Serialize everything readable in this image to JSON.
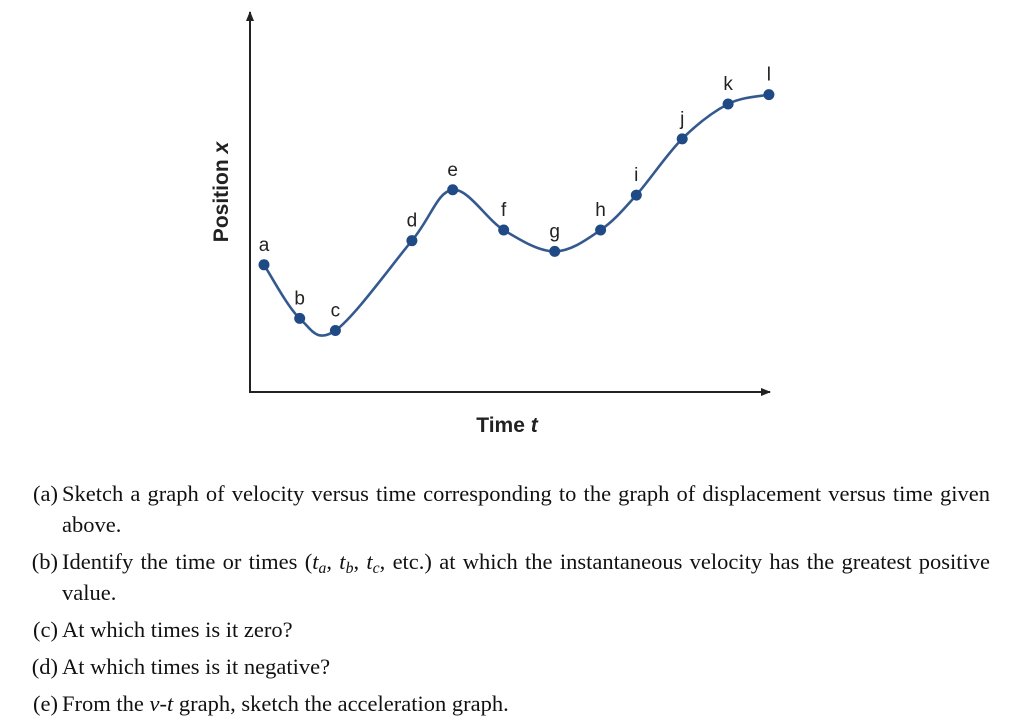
{
  "chart_data": {
    "type": "line",
    "xlabel_main": "Time",
    "xlabel_var": "t",
    "ylabel_main": "Position",
    "ylabel_var": "x",
    "points": [
      {
        "label": "a",
        "t": 0.0,
        "x": 0.4
      },
      {
        "label": "b",
        "t": 0.07,
        "x": 0.2
      },
      {
        "label": "c",
        "t": 0.14,
        "x": 0.155
      },
      {
        "label": "d",
        "t": 0.29,
        "x": 0.49
      },
      {
        "label": "e",
        "t": 0.37,
        "x": 0.68
      },
      {
        "label": "f",
        "t": 0.47,
        "x": 0.53
      },
      {
        "label": "g",
        "t": 0.57,
        "x": 0.45
      },
      {
        "label": "h",
        "t": 0.66,
        "x": 0.53
      },
      {
        "label": "i",
        "t": 0.73,
        "x": 0.66
      },
      {
        "label": "j",
        "t": 0.82,
        "x": 0.87
      },
      {
        "label": "k",
        "t": 0.91,
        "x": 1.0
      },
      {
        "label": "l",
        "t": 0.99,
        "x": 1.035
      }
    ],
    "colors": {
      "curve": "#34598f",
      "points": "#1f4a85",
      "axes": "#222222"
    }
  },
  "questions": [
    {
      "marker": "a",
      "text": "Sketch a graph of velocity versus time corresponding to the graph of displacement versus time given above."
    },
    {
      "marker": "b",
      "parts": [
        "Identify the time or times (",
        "t",
        "a",
        ", ",
        "t",
        "b",
        ", ",
        "t",
        "c",
        ", etc.)  at which the instantaneous velocity has the greatest positive value."
      ]
    },
    {
      "marker": "c",
      "text": "At which times is it zero?"
    },
    {
      "marker": "d",
      "text": "At which times is it negative?"
    },
    {
      "marker": "e",
      "parts": [
        "From the ",
        "v",
        "-",
        "t",
        " graph, sketch the acceleration graph."
      ]
    }
  ]
}
